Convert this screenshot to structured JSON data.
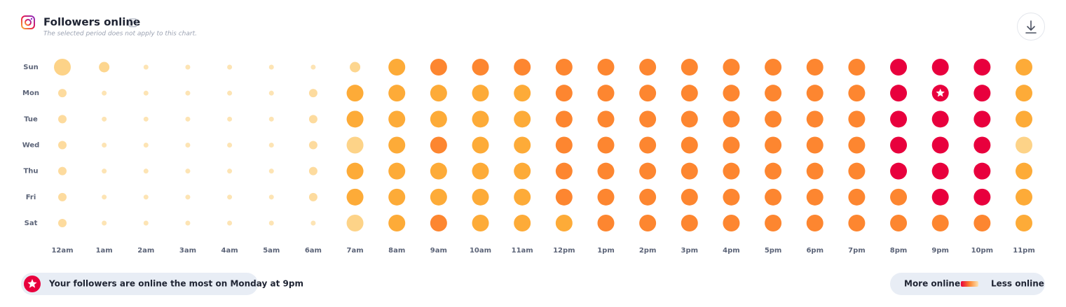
{
  "chart_data": {
    "type": "dot-heatmap",
    "title": "Followers online",
    "help_icon": "?",
    "subtitle": "The selected period does not apply to this chart.",
    "rows": [
      "Sun",
      "Mon",
      "Tue",
      "Wed",
      "Thu",
      "Fri",
      "Sat"
    ],
    "columns": [
      "12am",
      "1am",
      "2am",
      "3am",
      "4am",
      "5am",
      "6am",
      "7am",
      "8am",
      "9am",
      "10am",
      "11am",
      "12pm",
      "1pm",
      "2pm",
      "3pm",
      "4pm",
      "5pm",
      "6pm",
      "7pm",
      "8pm",
      "9pm",
      "10pm",
      "11pm"
    ],
    "values": [
      [
        4,
        3,
        1,
        1,
        1,
        1,
        1,
        3,
        5,
        6,
        6,
        6,
        6,
        6,
        6,
        6,
        6,
        6,
        6,
        6,
        7,
        7,
        7,
        5
      ],
      [
        2,
        1,
        1,
        1,
        1,
        1,
        2,
        5,
        5,
        5,
        5,
        5,
        6,
        6,
        6,
        6,
        6,
        6,
        6,
        6,
        7,
        7,
        7,
        5
      ],
      [
        2,
        1,
        1,
        1,
        1,
        1,
        2,
        5,
        5,
        5,
        5,
        5,
        6,
        6,
        6,
        6,
        6,
        6,
        6,
        6,
        7,
        7,
        7,
        5
      ],
      [
        2,
        1,
        1,
        1,
        1,
        1,
        2,
        4,
        5,
        6,
        5,
        5,
        6,
        6,
        6,
        6,
        6,
        6,
        6,
        6,
        7,
        7,
        7,
        4
      ],
      [
        2,
        1,
        1,
        1,
        1,
        1,
        2,
        5,
        5,
        5,
        5,
        5,
        6,
        6,
        6,
        6,
        6,
        6,
        6,
        6,
        7,
        7,
        7,
        5
      ],
      [
        2,
        1,
        1,
        1,
        1,
        1,
        2,
        5,
        5,
        5,
        5,
        5,
        6,
        6,
        6,
        6,
        6,
        6,
        6,
        6,
        6,
        7,
        7,
        5
      ],
      [
        2,
        1,
        1,
        1,
        1,
        1,
        1,
        4,
        5,
        6,
        5,
        5,
        5,
        6,
        6,
        6,
        6,
        6,
        6,
        6,
        6,
        6,
        6,
        5
      ]
    ],
    "level_colors": [
      "#fde4b4",
      "#fddb9e",
      "#fdd68f",
      "#fdd388",
      "#fdab38",
      "#fd8630",
      "#e8003d"
    ],
    "highlight": {
      "row": 1,
      "column": 21
    },
    "summary": "Your followers are online the most on Monday at 9pm",
    "legend": {
      "high": "More online",
      "low": "Less online"
    }
  }
}
